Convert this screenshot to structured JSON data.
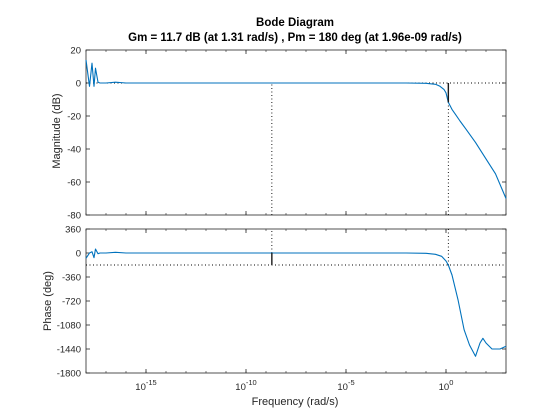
{
  "chart_data": [
    {
      "type": "line",
      "panel": "magnitude",
      "title": "Bode Diagram",
      "subtitle": "Gm = 11.7 dB (at 1.31 rad/s) ,  Pm = 180 deg (at 1.96e-09 rad/s)",
      "xlabel": "Frequency  (rad/s)",
      "ylabel": "Magnitude (dB)",
      "x_scale": "log",
      "xlim": [
        1e-18,
        1000.0
      ],
      "ylim": [
        -80,
        20
      ],
      "yticks": [
        20,
        0,
        -20,
        -40,
        -60,
        -80
      ],
      "xticks": [
        {
          "base": "10",
          "exp": "-15",
          "value": 1e-15
        },
        {
          "base": "10",
          "exp": "-10",
          "value": 1e-10
        },
        {
          "base": "10",
          "exp": "-5",
          "value": 1e-05
        },
        {
          "base": "10",
          "exp": "0",
          "value": 1
        }
      ],
      "grid": false,
      "line_color": "#0072BD",
      "x": [
        1e-18,
        1.5e-18,
        2e-18,
        2.5e-18,
        3e-18,
        4e-18,
        5e-18,
        6e-18,
        8e-18,
        1e-17,
        3e-17,
        1e-16,
        1e-12,
        1e-08,
        1e-05,
        0.001,
        0.01,
        0.1,
        0.3,
        0.5,
        0.8,
        1,
        1.31,
        2,
        3,
        5,
        10,
        30,
        100,
        300,
        1000
      ],
      "y": [
        14,
        -2,
        12,
        -2,
        9,
        0.5,
        0,
        0,
        0,
        0,
        0.5,
        0,
        0,
        0,
        0,
        0,
        0,
        -0.2,
        -0.8,
        -2,
        -4,
        -6,
        -11.7,
        -16,
        -19,
        -23,
        -28,
        -36,
        -46,
        -55,
        -70
      ],
      "reference_lines": [
        {
          "axis": "y",
          "value": 0,
          "style": "dotted"
        },
        {
          "axis": "x",
          "value": 1.96e-09,
          "style": "dotted",
          "from": -80,
          "to": 0
        },
        {
          "axis": "x",
          "value": 1.31,
          "style": "dotted",
          "from": -80,
          "to": -11.7
        }
      ],
      "margin_markers": [
        {
          "x": 1.31,
          "from": 0,
          "to": -11.7
        }
      ]
    },
    {
      "type": "line",
      "panel": "phase",
      "xlabel": "Frequency  (rad/s)",
      "ylabel": "Phase (deg)",
      "x_scale": "log",
      "xlim": [
        1e-18,
        1000.0
      ],
      "ylim": [
        -1800,
        360
      ],
      "yticks": [
        360,
        0,
        -360,
        -720,
        -1080,
        -1440,
        -1800
      ],
      "xticks": [
        {
          "base": "10",
          "exp": "-15",
          "value": 1e-15
        },
        {
          "base": "10",
          "exp": "-10",
          "value": 1e-10
        },
        {
          "base": "10",
          "exp": "-5",
          "value": 1e-05
        },
        {
          "base": "10",
          "exp": "0",
          "value": 1
        }
      ],
      "grid": false,
      "line_color": "#0072BD",
      "x": [
        1e-18,
        1.5e-18,
        2e-18,
        2.5e-18,
        3e-18,
        4e-18,
        5e-18,
        8e-18,
        1e-17,
        3e-17,
        1e-16,
        1e-12,
        1e-08,
        1e-05,
        0.01,
        0.1,
        0.3,
        0.6,
        1,
        1.31,
        2,
        4,
        8,
        15,
        30,
        50,
        70,
        100,
        200,
        500,
        1000
      ],
      "y": [
        -80,
        0,
        20,
        -70,
        60,
        -10,
        0,
        0,
        0,
        10,
        0,
        0,
        0,
        0,
        0,
        -5,
        -20,
        -50,
        -120,
        -180,
        -330,
        -700,
        -1150,
        -1380,
        -1550,
        -1350,
        -1280,
        -1350,
        -1440,
        -1440,
        -1400
      ],
      "reference_lines": [
        {
          "axis": "y",
          "value": -180,
          "style": "dotted"
        },
        {
          "axis": "x",
          "value": 1.96e-09,
          "style": "dotted",
          "from": 0,
          "to": 360
        },
        {
          "axis": "x",
          "value": 1.31,
          "style": "dotted",
          "from": -180,
          "to": 360
        }
      ],
      "margin_markers": [
        {
          "x": 1.96e-09,
          "from": 0,
          "to": -180
        }
      ]
    }
  ]
}
